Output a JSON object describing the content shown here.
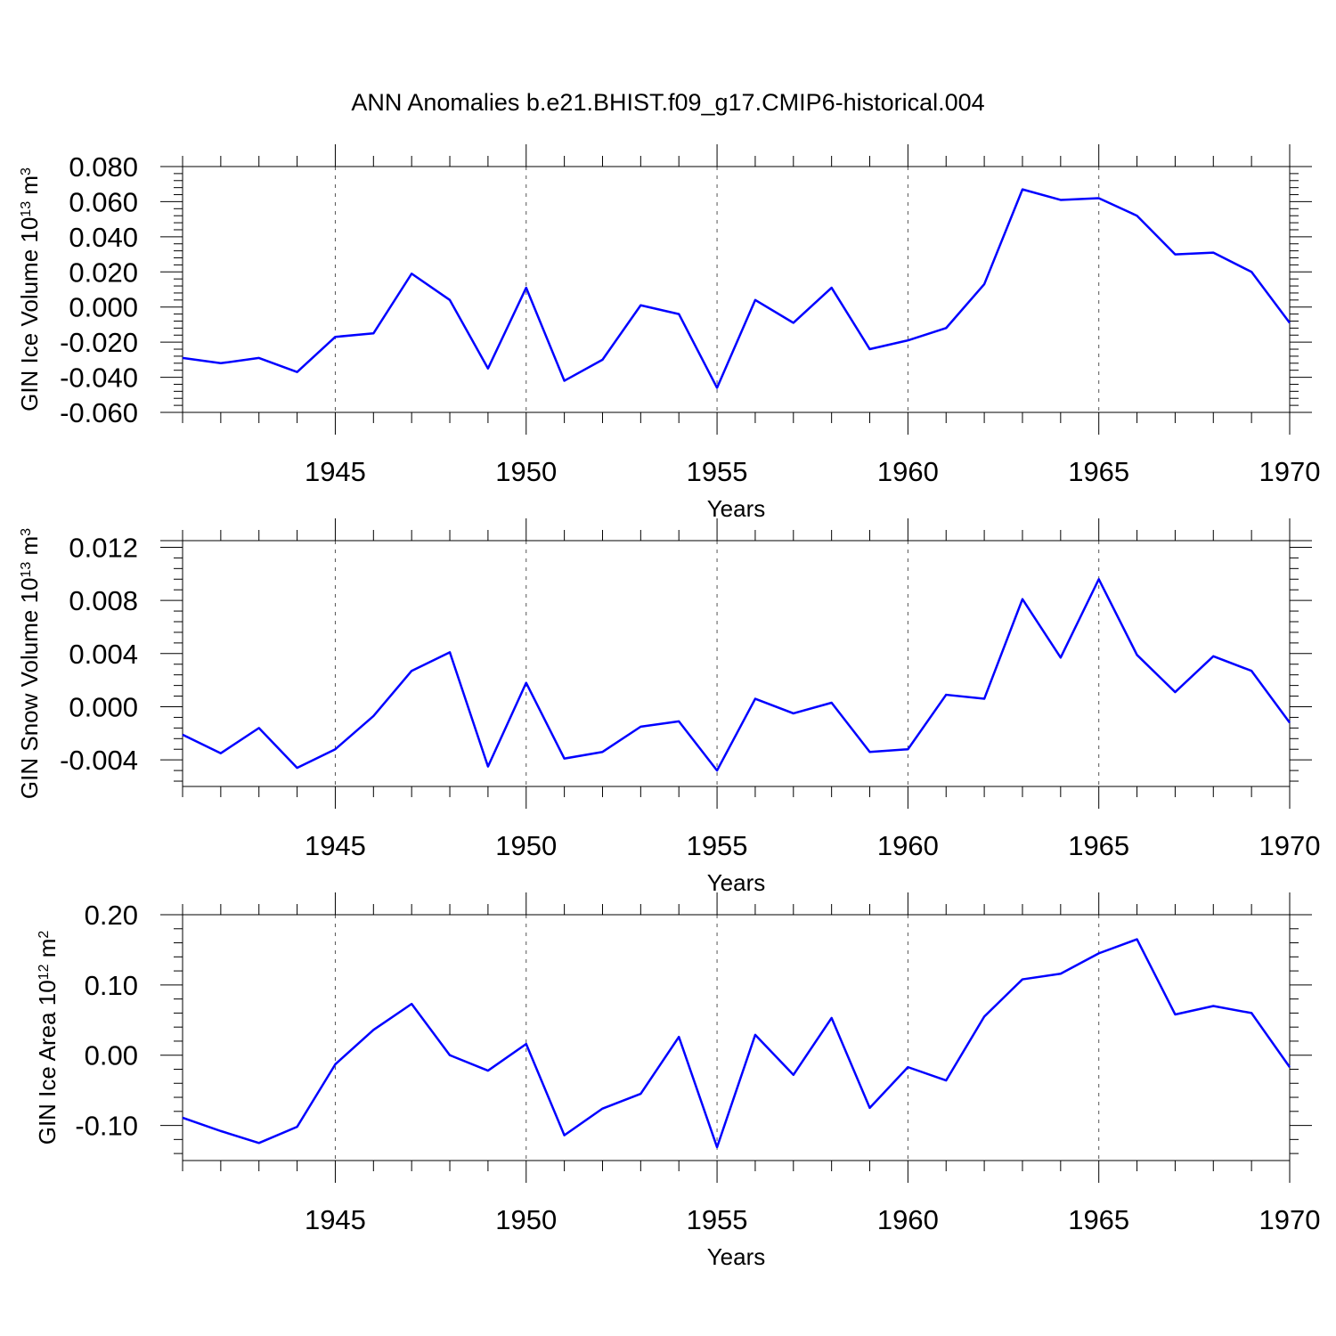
{
  "title": "ANN Anomalies b.e21.BHIST.f09_g17.CMIP6-historical.004",
  "colors": {
    "line": "#0000ff",
    "axis": "#000000",
    "grid": "#555555"
  },
  "chart_data": [
    {
      "type": "line",
      "ylabel": {
        "text": "GIN Ice Volume 10",
        "exp": "13",
        "unit": " m",
        "unit_exp": "3"
      },
      "xlabel": "Years",
      "xlim": [
        1941,
        1970
      ],
      "ylim": [
        -0.06,
        0.08
      ],
      "xticks": [
        1945,
        1950,
        1955,
        1960,
        1965,
        1970
      ],
      "xtick_labels": [
        "1945",
        "1950",
        "1955",
        "1960",
        "1965",
        "1970"
      ],
      "yticks": [
        -0.06,
        -0.04,
        -0.02,
        0.0,
        0.02,
        0.04,
        0.06,
        0.08
      ],
      "ytick_labels": [
        "-0.060",
        "-0.040",
        "-0.020",
        "0.000",
        "0.020",
        "0.040",
        "0.060",
        "0.080"
      ],
      "grid": "dashed vertical at major x ticks",
      "x": [
        1941,
        1942,
        1943,
        1944,
        1945,
        1946,
        1947,
        1948,
        1949,
        1950,
        1951,
        1952,
        1953,
        1954,
        1955,
        1956,
        1957,
        1958,
        1959,
        1960,
        1961,
        1962,
        1963,
        1964,
        1965,
        1966,
        1967,
        1968,
        1969,
        1970
      ],
      "y": [
        -0.029,
        -0.032,
        -0.029,
        -0.037,
        -0.017,
        -0.015,
        0.019,
        0.004,
        -0.035,
        0.011,
        -0.042,
        -0.03,
        0.001,
        -0.004,
        -0.046,
        0.004,
        -0.009,
        0.011,
        -0.024,
        -0.019,
        -0.012,
        0.013,
        0.067,
        0.061,
        0.062,
        0.052,
        0.03,
        0.031,
        0.02,
        -0.009
      ]
    },
    {
      "type": "line",
      "ylabel": {
        "text": "GIN Snow Volume 10",
        "exp": "13",
        "unit": " m",
        "unit_exp": "3"
      },
      "xlabel": "Years",
      "xlim": [
        1941,
        1970
      ],
      "ylim": [
        -0.006,
        0.0125
      ],
      "xticks": [
        1945,
        1950,
        1955,
        1960,
        1965,
        1970
      ],
      "xtick_labels": [
        "1945",
        "1950",
        "1955",
        "1960",
        "1965",
        "1970"
      ],
      "yticks": [
        -0.004,
        0.0,
        0.004,
        0.008,
        0.012
      ],
      "ytick_labels": [
        "-0.004",
        "0.000",
        "0.004",
        "0.008",
        "0.012"
      ],
      "grid": "dashed vertical at major x ticks",
      "x": [
        1941,
        1942,
        1943,
        1944,
        1945,
        1946,
        1947,
        1948,
        1949,
        1950,
        1951,
        1952,
        1953,
        1954,
        1955,
        1956,
        1957,
        1958,
        1959,
        1960,
        1961,
        1962,
        1963,
        1964,
        1965,
        1966,
        1967,
        1968,
        1969,
        1970
      ],
      "y": [
        -0.0021,
        -0.0035,
        -0.0016,
        -0.0046,
        -0.0032,
        -0.0007,
        0.0027,
        0.0041,
        -0.0045,
        0.0018,
        -0.0039,
        -0.0034,
        -0.0015,
        -0.0011,
        -0.0048,
        0.0006,
        -0.0005,
        0.0003,
        -0.0034,
        -0.0032,
        0.0009,
        0.0006,
        0.0081,
        0.0037,
        0.0096,
        0.0039,
        0.0011,
        0.0038,
        0.0027,
        -0.0012
      ]
    },
    {
      "type": "line",
      "ylabel": {
        "text": "GIN Ice Area 10",
        "exp": "12",
        "unit": " m",
        "unit_exp": "2"
      },
      "xlabel": "Years",
      "xlim": [
        1941,
        1970
      ],
      "ylim": [
        -0.15,
        0.2
      ],
      "xticks": [
        1945,
        1950,
        1955,
        1960,
        1965,
        1970
      ],
      "xtick_labels": [
        "1945",
        "1950",
        "1955",
        "1960",
        "1965",
        "1970"
      ],
      "yticks": [
        -0.1,
        0.0,
        0.1,
        0.2
      ],
      "ytick_labels": [
        "-0.10",
        "0.00",
        "0.10",
        "0.20"
      ],
      "grid": "dashed vertical at major x ticks",
      "x": [
        1941,
        1942,
        1943,
        1944,
        1945,
        1946,
        1947,
        1948,
        1949,
        1950,
        1951,
        1952,
        1953,
        1954,
        1955,
        1956,
        1957,
        1958,
        1959,
        1960,
        1961,
        1962,
        1963,
        1964,
        1965,
        1966,
        1967,
        1968,
        1969,
        1970
      ],
      "y": [
        -0.089,
        -0.108,
        -0.125,
        -0.102,
        -0.013,
        0.036,
        0.073,
        0.0,
        -0.022,
        0.016,
        -0.114,
        -0.076,
        -0.055,
        0.026,
        -0.131,
        0.029,
        -0.028,
        0.053,
        -0.075,
        -0.017,
        -0.036,
        0.055,
        0.108,
        0.116,
        0.145,
        0.165,
        0.058,
        0.07,
        0.06,
        -0.017
      ]
    }
  ]
}
